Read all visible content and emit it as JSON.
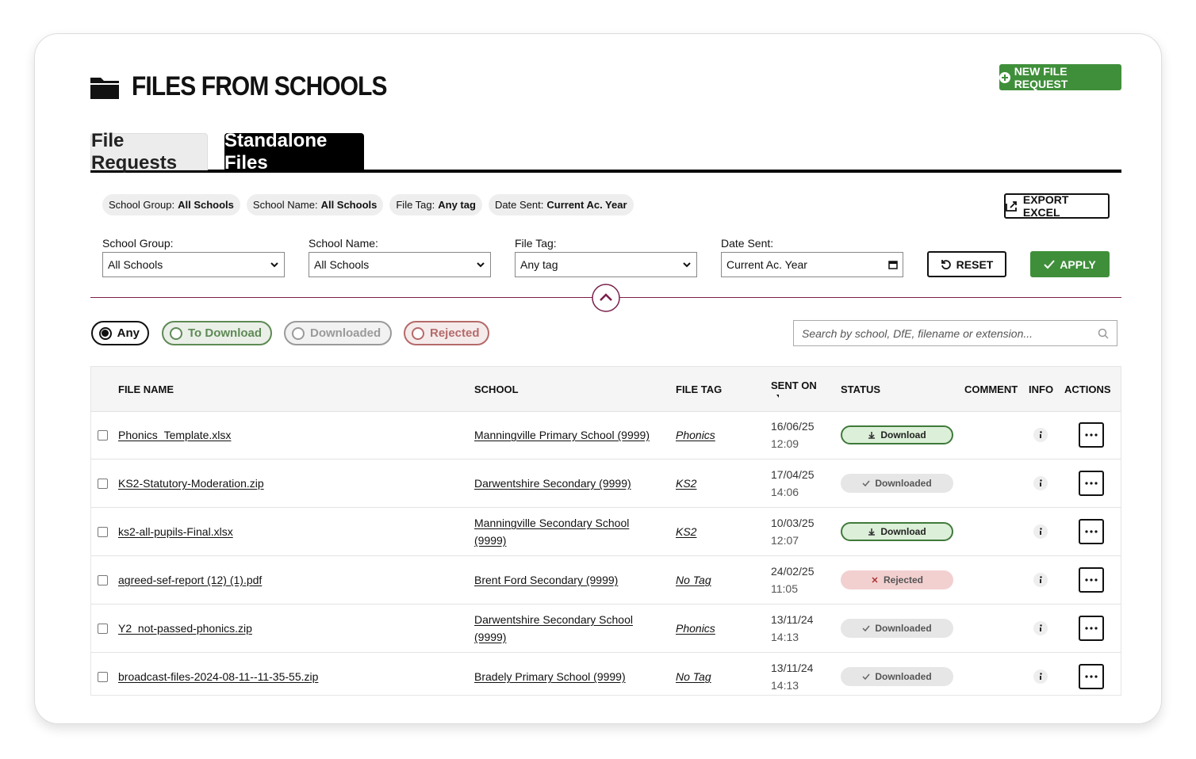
{
  "header": {
    "title": "FILES FROM SCHOOLS",
    "new_button": "NEW FILE REQUEST"
  },
  "tabs": [
    {
      "label": "File Requests",
      "active": false
    },
    {
      "label": "Standalone Files",
      "active": true
    }
  ],
  "chips": [
    {
      "label": "School Group:",
      "value": "All Schools"
    },
    {
      "label": "School Name:",
      "value": "All Schools"
    },
    {
      "label": "File Tag:",
      "value": "Any tag"
    },
    {
      "label": "Date Sent:",
      "value": "Current Ac. Year"
    }
  ],
  "export_button": "EXPORT EXCEL",
  "filters": [
    {
      "label": "School Group:",
      "value": "All Schools"
    },
    {
      "label": "School Name:",
      "value": "All Schools"
    },
    {
      "label": "File Tag:",
      "value": "Any tag"
    },
    {
      "label": "Date Sent:",
      "value": "Current Ac. Year"
    }
  ],
  "reset_button": "RESET",
  "apply_button": "APPLY",
  "status_filters": [
    {
      "label": "Any",
      "selected": true,
      "color": "#111111"
    },
    {
      "label": "To Download",
      "selected": false,
      "color": "#5e8a55"
    },
    {
      "label": "Downloaded",
      "selected": false,
      "color": "#9a9a9a"
    },
    {
      "label": "Rejected",
      "selected": false,
      "color": "#b56a6a"
    }
  ],
  "search_placeholder": "Search by school, DfE, filename or extension...",
  "table": {
    "columns": [
      "FILE NAME",
      "SCHOOL",
      "FILE TAG",
      "SENT ON",
      "STATUS",
      "COMMENT",
      "INFO",
      "ACTIONS"
    ],
    "rows": [
      {
        "file": "Phonics_Template.xlsx",
        "school": "Manningville Primary School (9999)",
        "tag": "Phonics",
        "date": "16/06/25",
        "time": "12:09",
        "status": "Download",
        "status_color": "#dcefd8"
      },
      {
        "file": "KS2-Statutory-Moderation.zip",
        "school": "Darwentshire Secondary (9999)",
        "tag": "KS2",
        "date": "17/04/25",
        "time": "14:06",
        "status": "Downloaded",
        "status_color": "#e6e6e6"
      },
      {
        "file": "ks2-all-pupils-Final.xlsx",
        "school": "Manningville Secondary School (9999)",
        "tag": "KS2",
        "date": "10/03/25",
        "time": "12:07",
        "status": "Download",
        "status_color": "#dcefd8"
      },
      {
        "file": "agreed-sef-report (12) (1).pdf",
        "school": "Brent Ford Secondary (9999)",
        "tag": "No Tag",
        "date": "24/02/25",
        "time": "11:05",
        "status": "Rejected",
        "status_color": "#f2d0d0"
      },
      {
        "file": "Y2_not-passed-phonics.zip",
        "school": "Darwentshire Secondary School (9999)",
        "tag": "Phonics",
        "date": "13/11/24",
        "time": "14:13",
        "status": "Downloaded",
        "status_color": "#e6e6e6"
      },
      {
        "file": "broadcast-files-2024-08-11--11-35-55.zip",
        "school": "Bradely Primary School (9999)",
        "tag": "No Tag",
        "date": "13/11/24",
        "time": "14:13",
        "status": "Downloaded",
        "status_color": "#e6e6e6"
      }
    ]
  }
}
